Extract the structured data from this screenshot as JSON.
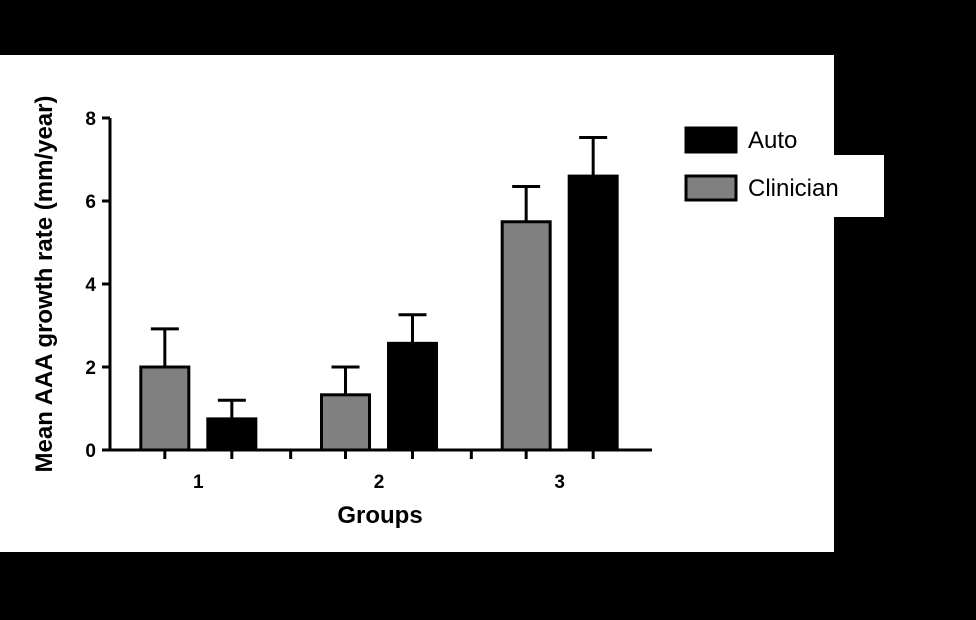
{
  "chart_data": {
    "type": "bar",
    "categories": [
      "1",
      "2",
      "3"
    ],
    "series": [
      {
        "name": "Clinician",
        "color": "#808080",
        "values": [
          2.0,
          1.33,
          5.5
        ],
        "errors": [
          0.92,
          0.67,
          0.85
        ]
      },
      {
        "name": "Auto",
        "color": "#000000",
        "values": [
          0.75,
          2.57,
          6.6
        ],
        "errors": [
          0.45,
          0.69,
          0.93
        ]
      }
    ],
    "xlabel": "Groups",
    "ylabel": "Mean AAA growth rate (mm/year)",
    "ylim": [
      0,
      8
    ],
    "yticks": [
      "0",
      "2",
      "4",
      "6",
      "8"
    ],
    "grid": false,
    "legend_position": "top-right",
    "legend_order": [
      "Auto",
      "Clinician"
    ]
  }
}
